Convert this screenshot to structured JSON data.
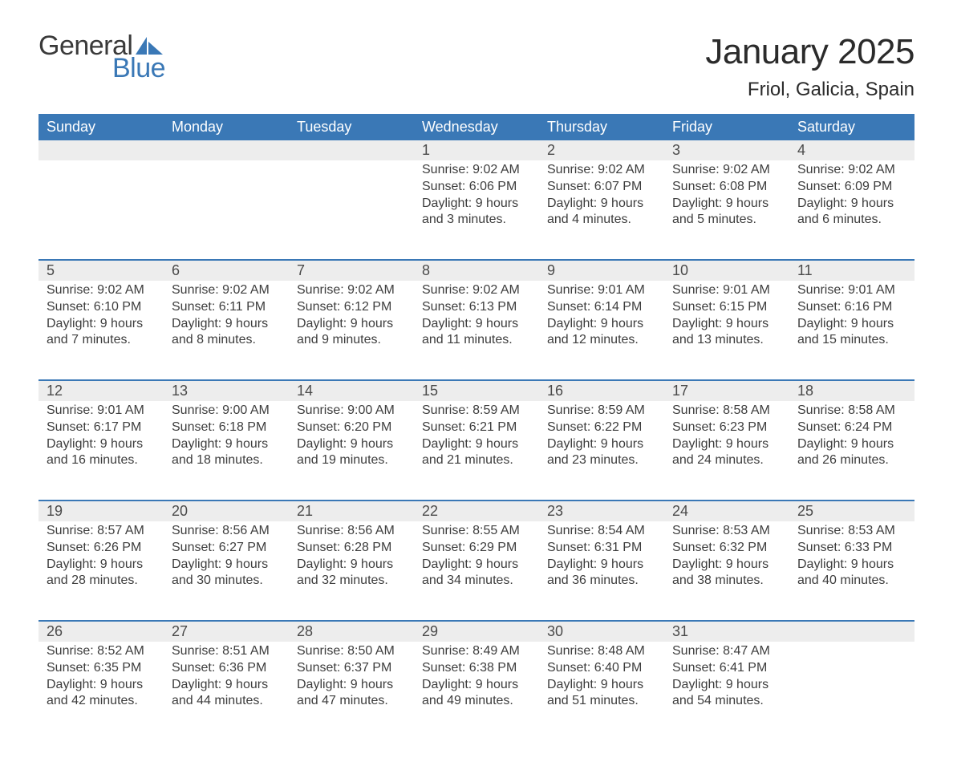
{
  "brand": {
    "word1": "General",
    "word2": "Blue",
    "sail_color": "#3a78b6"
  },
  "title": "January 2025",
  "location": "Friol, Galicia, Spain",
  "colors": {
    "header_bg": "#3a78b6",
    "cell_bg": "#ededed",
    "border_blue": "#3a78b6",
    "text_dark": "#3a3a3a",
    "page_bg": "#ffffff"
  },
  "typography": {
    "title_fontsize_pt": 33,
    "location_fontsize_pt": 18,
    "weekday_fontsize_pt": 14,
    "daynum_fontsize_pt": 14,
    "body_fontsize_pt": 12,
    "font_family": "Segoe UI / Arial"
  },
  "layout": {
    "type": "calendar-grid",
    "columns": 7,
    "rows": 5,
    "first_weekday": "Sunday",
    "leading_blanks": 3,
    "trailing_blanks": 1
  },
  "weekdays": [
    "Sunday",
    "Monday",
    "Tuesday",
    "Wednesday",
    "Thursday",
    "Friday",
    "Saturday"
  ],
  "labels": {
    "sunrise": "Sunrise:",
    "sunset": "Sunset:",
    "daylight": "Daylight:"
  },
  "days": [
    {
      "n": 1,
      "sunrise": "9:02 AM",
      "sunset": "6:06 PM",
      "daylight": "9 hours and 3 minutes."
    },
    {
      "n": 2,
      "sunrise": "9:02 AM",
      "sunset": "6:07 PM",
      "daylight": "9 hours and 4 minutes."
    },
    {
      "n": 3,
      "sunrise": "9:02 AM",
      "sunset": "6:08 PM",
      "daylight": "9 hours and 5 minutes."
    },
    {
      "n": 4,
      "sunrise": "9:02 AM",
      "sunset": "6:09 PM",
      "daylight": "9 hours and 6 minutes."
    },
    {
      "n": 5,
      "sunrise": "9:02 AM",
      "sunset": "6:10 PM",
      "daylight": "9 hours and 7 minutes."
    },
    {
      "n": 6,
      "sunrise": "9:02 AM",
      "sunset": "6:11 PM",
      "daylight": "9 hours and 8 minutes."
    },
    {
      "n": 7,
      "sunrise": "9:02 AM",
      "sunset": "6:12 PM",
      "daylight": "9 hours and 9 minutes."
    },
    {
      "n": 8,
      "sunrise": "9:02 AM",
      "sunset": "6:13 PM",
      "daylight": "9 hours and 11 minutes."
    },
    {
      "n": 9,
      "sunrise": "9:01 AM",
      "sunset": "6:14 PM",
      "daylight": "9 hours and 12 minutes."
    },
    {
      "n": 10,
      "sunrise": "9:01 AM",
      "sunset": "6:15 PM",
      "daylight": "9 hours and 13 minutes."
    },
    {
      "n": 11,
      "sunrise": "9:01 AM",
      "sunset": "6:16 PM",
      "daylight": "9 hours and 15 minutes."
    },
    {
      "n": 12,
      "sunrise": "9:01 AM",
      "sunset": "6:17 PM",
      "daylight": "9 hours and 16 minutes."
    },
    {
      "n": 13,
      "sunrise": "9:00 AM",
      "sunset": "6:18 PM",
      "daylight": "9 hours and 18 minutes."
    },
    {
      "n": 14,
      "sunrise": "9:00 AM",
      "sunset": "6:20 PM",
      "daylight": "9 hours and 19 minutes."
    },
    {
      "n": 15,
      "sunrise": "8:59 AM",
      "sunset": "6:21 PM",
      "daylight": "9 hours and 21 minutes."
    },
    {
      "n": 16,
      "sunrise": "8:59 AM",
      "sunset": "6:22 PM",
      "daylight": "9 hours and 23 minutes."
    },
    {
      "n": 17,
      "sunrise": "8:58 AM",
      "sunset": "6:23 PM",
      "daylight": "9 hours and 24 minutes."
    },
    {
      "n": 18,
      "sunrise": "8:58 AM",
      "sunset": "6:24 PM",
      "daylight": "9 hours and 26 minutes."
    },
    {
      "n": 19,
      "sunrise": "8:57 AM",
      "sunset": "6:26 PM",
      "daylight": "9 hours and 28 minutes."
    },
    {
      "n": 20,
      "sunrise": "8:56 AM",
      "sunset": "6:27 PM",
      "daylight": "9 hours and 30 minutes."
    },
    {
      "n": 21,
      "sunrise": "8:56 AM",
      "sunset": "6:28 PM",
      "daylight": "9 hours and 32 minutes."
    },
    {
      "n": 22,
      "sunrise": "8:55 AM",
      "sunset": "6:29 PM",
      "daylight": "9 hours and 34 minutes."
    },
    {
      "n": 23,
      "sunrise": "8:54 AM",
      "sunset": "6:31 PM",
      "daylight": "9 hours and 36 minutes."
    },
    {
      "n": 24,
      "sunrise": "8:53 AM",
      "sunset": "6:32 PM",
      "daylight": "9 hours and 38 minutes."
    },
    {
      "n": 25,
      "sunrise": "8:53 AM",
      "sunset": "6:33 PM",
      "daylight": "9 hours and 40 minutes."
    },
    {
      "n": 26,
      "sunrise": "8:52 AM",
      "sunset": "6:35 PM",
      "daylight": "9 hours and 42 minutes."
    },
    {
      "n": 27,
      "sunrise": "8:51 AM",
      "sunset": "6:36 PM",
      "daylight": "9 hours and 44 minutes."
    },
    {
      "n": 28,
      "sunrise": "8:50 AM",
      "sunset": "6:37 PM",
      "daylight": "9 hours and 47 minutes."
    },
    {
      "n": 29,
      "sunrise": "8:49 AM",
      "sunset": "6:38 PM",
      "daylight": "9 hours and 49 minutes."
    },
    {
      "n": 30,
      "sunrise": "8:48 AM",
      "sunset": "6:40 PM",
      "daylight": "9 hours and 51 minutes."
    },
    {
      "n": 31,
      "sunrise": "8:47 AM",
      "sunset": "6:41 PM",
      "daylight": "9 hours and 54 minutes."
    }
  ]
}
